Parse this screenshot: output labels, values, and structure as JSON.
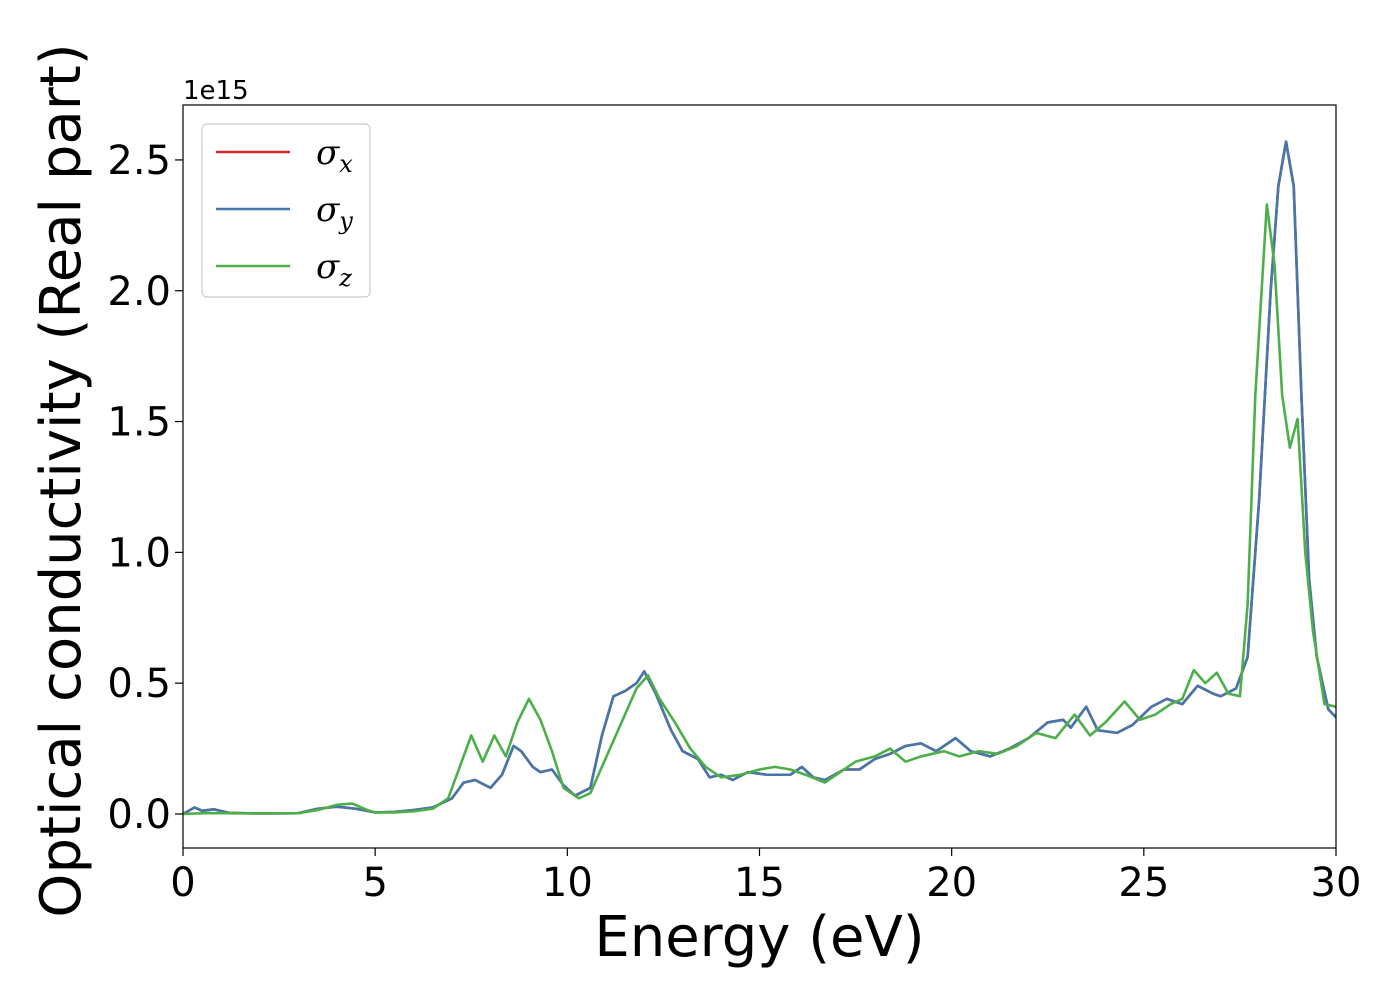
{
  "chart_data": {
    "type": "line",
    "title": "",
    "xlabel": "Energy (eV)",
    "ylabel": "Optical conductivity (Real part)",
    "y_offset_label": "1e15",
    "xlim": [
      0,
      30
    ],
    "ylim": [
      -0.13,
      2.71
    ],
    "y_scale_factor": 1000000000000000.0,
    "grid": false,
    "legend_position": "top-left",
    "xticks": [
      0,
      5,
      10,
      15,
      20,
      25,
      30
    ],
    "xtick_labels": [
      "0",
      "5",
      "10",
      "15",
      "20",
      "25",
      "30"
    ],
    "yticks": [
      0.0,
      0.5,
      1.0,
      1.5,
      2.0,
      2.5
    ],
    "ytick_labels": [
      "0.0",
      "0.5",
      "1.0",
      "1.5",
      "2.0",
      "2.5"
    ],
    "series": [
      {
        "name": "σx",
        "symbol": "σ",
        "subscript": "x",
        "color": "#d62728",
        "points": [
          [
            0,
            0.0
          ],
          [
            0.3,
            0.025
          ],
          [
            0.5,
            0.012
          ],
          [
            0.8,
            0.018
          ],
          [
            1.2,
            0.004
          ],
          [
            2,
            0.002
          ],
          [
            3,
            0.003
          ],
          [
            3.5,
            0.02
          ],
          [
            4,
            0.028
          ],
          [
            4.5,
            0.02
          ],
          [
            5,
            0.006
          ],
          [
            5.5,
            0.008
          ],
          [
            6,
            0.015
          ],
          [
            6.5,
            0.025
          ],
          [
            7,
            0.06
          ],
          [
            7.3,
            0.12
          ],
          [
            7.6,
            0.13
          ],
          [
            8,
            0.1
          ],
          [
            8.3,
            0.15
          ],
          [
            8.6,
            0.26
          ],
          [
            8.8,
            0.24
          ],
          [
            9.1,
            0.18
          ],
          [
            9.3,
            0.16
          ],
          [
            9.6,
            0.17
          ],
          [
            9.9,
            0.11
          ],
          [
            10.2,
            0.07
          ],
          [
            10.6,
            0.1
          ],
          [
            10.9,
            0.3
          ],
          [
            11.2,
            0.45
          ],
          [
            11.5,
            0.47
          ],
          [
            11.8,
            0.5
          ],
          [
            12.0,
            0.545
          ],
          [
            12.3,
            0.46
          ],
          [
            12.7,
            0.32
          ],
          [
            13,
            0.24
          ],
          [
            13.4,
            0.21
          ],
          [
            13.7,
            0.14
          ],
          [
            14,
            0.15
          ],
          [
            14.3,
            0.13
          ],
          [
            14.7,
            0.16
          ],
          [
            15.2,
            0.15
          ],
          [
            15.8,
            0.15
          ],
          [
            16.1,
            0.18
          ],
          [
            16.4,
            0.14
          ],
          [
            16.7,
            0.13
          ],
          [
            17.2,
            0.17
          ],
          [
            17.6,
            0.17
          ],
          [
            18,
            0.21
          ],
          [
            18.4,
            0.23
          ],
          [
            18.8,
            0.26
          ],
          [
            19.2,
            0.27
          ],
          [
            19.6,
            0.24
          ],
          [
            20.1,
            0.29
          ],
          [
            20.5,
            0.24
          ],
          [
            21,
            0.22
          ],
          [
            21.5,
            0.25
          ],
          [
            22,
            0.29
          ],
          [
            22.5,
            0.35
          ],
          [
            22.9,
            0.36
          ],
          [
            23.1,
            0.33
          ],
          [
            23.5,
            0.41
          ],
          [
            23.8,
            0.32
          ],
          [
            24.3,
            0.31
          ],
          [
            24.7,
            0.34
          ],
          [
            25.2,
            0.41
          ],
          [
            25.6,
            0.44
          ],
          [
            26,
            0.42
          ],
          [
            26.4,
            0.49
          ],
          [
            26.8,
            0.46
          ],
          [
            27,
            0.45
          ],
          [
            27.4,
            0.48
          ],
          [
            27.7,
            0.6
          ],
          [
            28,
            1.2
          ],
          [
            28.3,
            2.0
          ],
          [
            28.5,
            2.4
          ],
          [
            28.7,
            2.57
          ],
          [
            28.9,
            2.4
          ],
          [
            29.1,
            1.6
          ],
          [
            29.3,
            0.9
          ],
          [
            29.5,
            0.6
          ],
          [
            29.8,
            0.4
          ],
          [
            30,
            0.37
          ]
        ]
      },
      {
        "name": "σy",
        "symbol": "σ",
        "subscript": "y",
        "color": "#4477aa",
        "points": [
          [
            0,
            0.0
          ],
          [
            0.3,
            0.025
          ],
          [
            0.5,
            0.012
          ],
          [
            0.8,
            0.018
          ],
          [
            1.2,
            0.004
          ],
          [
            2,
            0.002
          ],
          [
            3,
            0.003
          ],
          [
            3.5,
            0.02
          ],
          [
            4,
            0.028
          ],
          [
            4.5,
            0.02
          ],
          [
            5,
            0.006
          ],
          [
            5.5,
            0.008
          ],
          [
            6,
            0.015
          ],
          [
            6.5,
            0.025
          ],
          [
            7,
            0.06
          ],
          [
            7.3,
            0.12
          ],
          [
            7.6,
            0.13
          ],
          [
            8,
            0.1
          ],
          [
            8.3,
            0.15
          ],
          [
            8.6,
            0.26
          ],
          [
            8.8,
            0.24
          ],
          [
            9.1,
            0.18
          ],
          [
            9.3,
            0.16
          ],
          [
            9.6,
            0.17
          ],
          [
            9.9,
            0.11
          ],
          [
            10.2,
            0.07
          ],
          [
            10.6,
            0.1
          ],
          [
            10.9,
            0.3
          ],
          [
            11.2,
            0.45
          ],
          [
            11.5,
            0.47
          ],
          [
            11.8,
            0.5
          ],
          [
            12.0,
            0.545
          ],
          [
            12.3,
            0.46
          ],
          [
            12.7,
            0.32
          ],
          [
            13,
            0.24
          ],
          [
            13.4,
            0.21
          ],
          [
            13.7,
            0.14
          ],
          [
            14,
            0.15
          ],
          [
            14.3,
            0.13
          ],
          [
            14.7,
            0.16
          ],
          [
            15.2,
            0.15
          ],
          [
            15.8,
            0.15
          ],
          [
            16.1,
            0.18
          ],
          [
            16.4,
            0.14
          ],
          [
            16.7,
            0.13
          ],
          [
            17.2,
            0.17
          ],
          [
            17.6,
            0.17
          ],
          [
            18,
            0.21
          ],
          [
            18.4,
            0.23
          ],
          [
            18.8,
            0.26
          ],
          [
            19.2,
            0.27
          ],
          [
            19.6,
            0.24
          ],
          [
            20.1,
            0.29
          ],
          [
            20.5,
            0.24
          ],
          [
            21,
            0.22
          ],
          [
            21.5,
            0.25
          ],
          [
            22,
            0.29
          ],
          [
            22.5,
            0.35
          ],
          [
            22.9,
            0.36
          ],
          [
            23.1,
            0.33
          ],
          [
            23.5,
            0.41
          ],
          [
            23.8,
            0.32
          ],
          [
            24.3,
            0.31
          ],
          [
            24.7,
            0.34
          ],
          [
            25.2,
            0.41
          ],
          [
            25.6,
            0.44
          ],
          [
            26,
            0.42
          ],
          [
            26.4,
            0.49
          ],
          [
            26.8,
            0.46
          ],
          [
            27,
            0.45
          ],
          [
            27.4,
            0.48
          ],
          [
            27.7,
            0.6
          ],
          [
            28,
            1.2
          ],
          [
            28.3,
            2.0
          ],
          [
            28.5,
            2.4
          ],
          [
            28.7,
            2.57
          ],
          [
            28.9,
            2.4
          ],
          [
            29.1,
            1.6
          ],
          [
            29.3,
            0.9
          ],
          [
            29.5,
            0.6
          ],
          [
            29.8,
            0.4
          ],
          [
            30,
            0.37
          ]
        ]
      },
      {
        "name": "σz",
        "symbol": "σ",
        "subscript": "z",
        "color": "#4daf4a",
        "points": [
          [
            0,
            0.0
          ],
          [
            0.5,
            0.003
          ],
          [
            1,
            0.003
          ],
          [
            2,
            0.002
          ],
          [
            3,
            0.003
          ],
          [
            3.5,
            0.015
          ],
          [
            4,
            0.035
          ],
          [
            4.4,
            0.04
          ],
          [
            4.8,
            0.015
          ],
          [
            5,
            0.006
          ],
          [
            5.5,
            0.006
          ],
          [
            6,
            0.01
          ],
          [
            6.5,
            0.02
          ],
          [
            6.9,
            0.06
          ],
          [
            7.2,
            0.18
          ],
          [
            7.5,
            0.3
          ],
          [
            7.8,
            0.2
          ],
          [
            8.1,
            0.3
          ],
          [
            8.4,
            0.22
          ],
          [
            8.7,
            0.35
          ],
          [
            9.0,
            0.44
          ],
          [
            9.3,
            0.36
          ],
          [
            9.6,
            0.24
          ],
          [
            9.9,
            0.1
          ],
          [
            10.3,
            0.06
          ],
          [
            10.6,
            0.08
          ],
          [
            10.9,
            0.18
          ],
          [
            11.2,
            0.28
          ],
          [
            11.5,
            0.38
          ],
          [
            11.8,
            0.48
          ],
          [
            12.1,
            0.53
          ],
          [
            12.4,
            0.44
          ],
          [
            12.8,
            0.35
          ],
          [
            13.2,
            0.25
          ],
          [
            13.6,
            0.18
          ],
          [
            14,
            0.14
          ],
          [
            14.5,
            0.15
          ],
          [
            15,
            0.17
          ],
          [
            15.4,
            0.18
          ],
          [
            15.8,
            0.17
          ],
          [
            16.2,
            0.15
          ],
          [
            16.7,
            0.12
          ],
          [
            17.1,
            0.16
          ],
          [
            17.5,
            0.2
          ],
          [
            18,
            0.22
          ],
          [
            18.4,
            0.25
          ],
          [
            18.8,
            0.2
          ],
          [
            19.2,
            0.22
          ],
          [
            19.8,
            0.24
          ],
          [
            20.2,
            0.22
          ],
          [
            20.7,
            0.24
          ],
          [
            21.2,
            0.23
          ],
          [
            21.7,
            0.26
          ],
          [
            22.2,
            0.31
          ],
          [
            22.7,
            0.29
          ],
          [
            23.2,
            0.38
          ],
          [
            23.6,
            0.3
          ],
          [
            24,
            0.35
          ],
          [
            24.5,
            0.43
          ],
          [
            24.9,
            0.36
          ],
          [
            25.3,
            0.38
          ],
          [
            25.7,
            0.42
          ],
          [
            26,
            0.44
          ],
          [
            26.3,
            0.55
          ],
          [
            26.6,
            0.5
          ],
          [
            26.9,
            0.54
          ],
          [
            27.2,
            0.46
          ],
          [
            27.5,
            0.45
          ],
          [
            27.7,
            0.8
          ],
          [
            27.9,
            1.6
          ],
          [
            28.2,
            2.33
          ],
          [
            28.4,
            2.1
          ],
          [
            28.6,
            1.6
          ],
          [
            28.8,
            1.4
          ],
          [
            29.0,
            1.51
          ],
          [
            29.2,
            1.0
          ],
          [
            29.4,
            0.7
          ],
          [
            29.7,
            0.42
          ],
          [
            30,
            0.41
          ]
        ]
      }
    ]
  }
}
